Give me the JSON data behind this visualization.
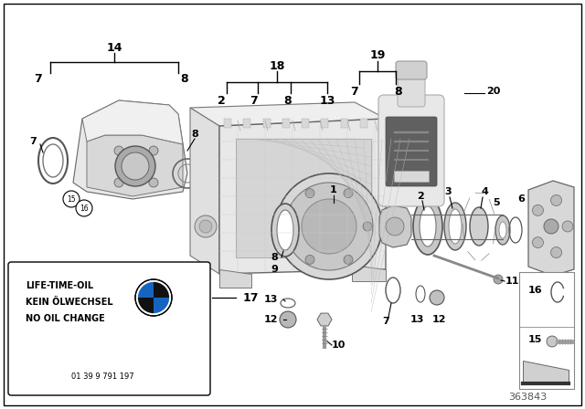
{
  "bg_color": "#ffffff",
  "fig_width": 6.4,
  "fig_height": 4.48,
  "part_number": "363843",
  "label_box_text": [
    "LIFE-TIME-OIL",
    "KEIN ÖLWECHSEL",
    "NO OIL CHANGE"
  ],
  "label_box_subtext": "01 39 9 791 197",
  "border_color": "#000000",
  "text_color": "#000000",
  "line_color": "#000000",
  "part_color": "#888888",
  "light_gray": "#cccccc",
  "mid_gray": "#aaaaaa",
  "dark_gray": "#555555"
}
